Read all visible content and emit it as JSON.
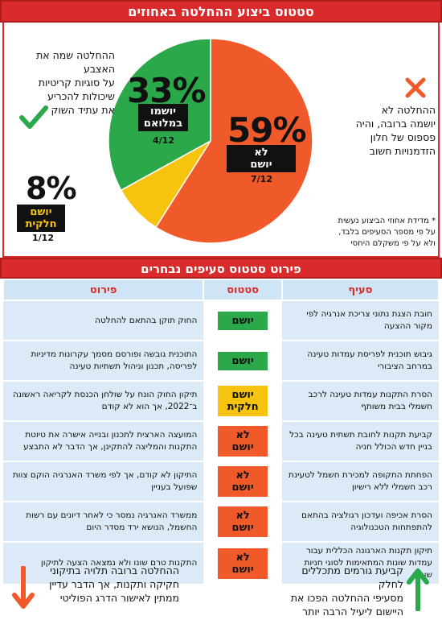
{
  "header": {
    "title": "סטטוס ביצוע ההחלטה באחוזים"
  },
  "chart_data": {
    "type": "pie",
    "title": "סטטוס ביצוע ההחלטה באחוזים",
    "slices": [
      {
        "label": "לא יושם",
        "percent": 59,
        "fraction": "7/12",
        "color": "#f05a2a"
      },
      {
        "label": "יושם בחלקו",
        "percent": 8,
        "fraction": "1/12",
        "color": "#f6c40f"
      },
      {
        "label": "יושמו במלואם",
        "percent": 33,
        "fraction": "4/12",
        "color": "#2aa84a"
      }
    ],
    "pct_labels": {
      "red": "59%",
      "yellow": "8%",
      "green": "33%"
    },
    "badges": {
      "red": "לא\nיושם",
      "yellow": "יושם\nחלקית",
      "green": "יושמו\nבמלואם"
    },
    "fracs": {
      "red": "7/12",
      "yellow": "1/12",
      "green": "4/12"
    }
  },
  "notes": {
    "green": "ההחלטה שמה את האצבע\nעל סוגיות קריטיות\nשיכולות להכריע\nאת עתיד השוק",
    "red": "ההחלטה לא\nיושמה ברובה, והיה\nפספוס של חלון\nהזדמנויות חשוב",
    "footnote": "* מדידת אחוזי הביצוע נעשית\nעל פי מספר הסעיפים בלבד,\nולא על פי משקלם היחסי"
  },
  "section2": {
    "title": "פירוט סטטוס סעיפים נבחרים"
  },
  "table": {
    "headers": {
      "clause": "סעיף",
      "status": "סטטוס",
      "detail": "פירוט"
    },
    "rows": [
      {
        "clause": "חובת הצגת נתוני צריכת אנרגיה לפי מקור ההצעה",
        "status": "יושם",
        "kind": "green",
        "detail": "החוק תוקן בהתאם להחלטה"
      },
      {
        "clause": "גיבוש תוכנית לפריסת עמדות טעינה במרחב הציבורי",
        "status": "יושם",
        "kind": "green",
        "detail": "התוכנית גובשה ופורסם מסמך עקרונות מדיניות לפריסה, תכנון וניהול תשתיות טעינה"
      },
      {
        "clause": "הסרת התקנות עמדות טעינה לרכב חשמלי בבית משותף",
        "status": "יושם\nחלקית",
        "kind": "yellow",
        "detail": "תיקון החוק הונח על שולחן הכנסת לקריאה ראשונה ב־2022, אך הוא לא קודם"
      },
      {
        "clause": "קביעת תקנות לחובת תשתית טעינה בכל בניין חדש הכולל חניה",
        "status": "לא\nיושם",
        "kind": "red",
        "detail": "המועצה הארצית לתכנון ובנייה אישרה את טיוטת התקנות והמליצה להתקינן, אך הדבר לא התבצע"
      },
      {
        "clause": "הפחתת התקופה למכירת חשמל לטעינת רכב חשמלי ללא רישיון",
        "status": "לא\nיושם",
        "kind": "red",
        "detail": "התיקון לא קודם, אך לפי משרד האנרגיה הוקם צוות שפועל בעניין"
      },
      {
        "clause": "הסרת אכיפה ועדכון רגולציה בהתאם להתפתחות הטכנולוגיה",
        "status": "לא\nיושם",
        "kind": "red",
        "detail": "ממשרד האנרגיה נמסר כי לאחר דיונים עם רשות החשמל, הנושא ירד מסדר היום"
      },
      {
        "clause": "תיקון תקנות הארגונה הכללית עבור עמדות שונות המתאימות לסוגי חניות שונות",
        "status": "לא\nיושם",
        "kind": "red",
        "detail": "התקנות טרם שונו ולא נמצאה הצעה לתיקון"
      }
    ]
  },
  "footer": {
    "right": "קביעת גורמים מתכללים לחלק\nמסעיפי ההחלטה הפכו את\nהיישום ליעיל הרבה יותר",
    "left": "ההחלטה ברובה תלויה בתיקוני\nחקיקה ותקנות, אך הדבר עדיין\nממתין לאישור הדרג הפוליטי"
  },
  "colors": {
    "accent": "#d92b2b",
    "green": "#2aa84a",
    "yellow": "#f6c40f",
    "red": "#f05a2a",
    "table_bg": "#dbeaf6"
  }
}
